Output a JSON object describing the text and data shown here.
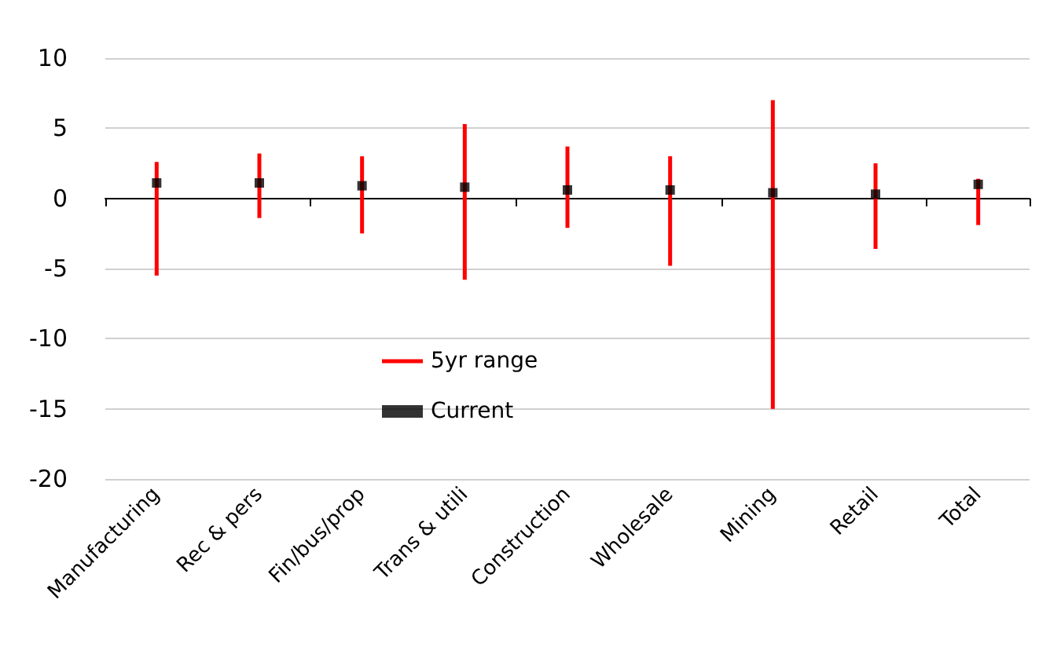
{
  "chart_data": {
    "type": "scatter",
    "categories": [
      "Manufacturing",
      "Rec & pers",
      "Fin/bus/prop",
      "Trans & utili",
      "Construction",
      "Wholesale",
      "Mining",
      "Retail",
      "Total"
    ],
    "series": [
      {
        "name": "5yr range",
        "type": "bar",
        "color": "#ff0000",
        "base": [
          -5.5,
          -1.4,
          -2.5,
          -5.8,
          -2.1,
          -4.8,
          -15.0,
          -3.6,
          -1.9
        ],
        "values": [
          8.1,
          4.6,
          5.5,
          11.1,
          5.8,
          7.8,
          22.0,
          6.1,
          3.3
        ]
      },
      {
        "name": "Current",
        "color": "#000000",
        "marker": "square",
        "values": [
          1.1,
          1.1,
          0.9,
          0.8,
          0.6,
          0.6,
          0.4,
          0.3,
          1.0
        ]
      }
    ],
    "ylim": [
      -20,
      10
    ],
    "yticks": [
      -20,
      -15,
      -10,
      -5,
      0,
      5,
      10
    ],
    "grid": "y",
    "legend": "bottom left"
  }
}
